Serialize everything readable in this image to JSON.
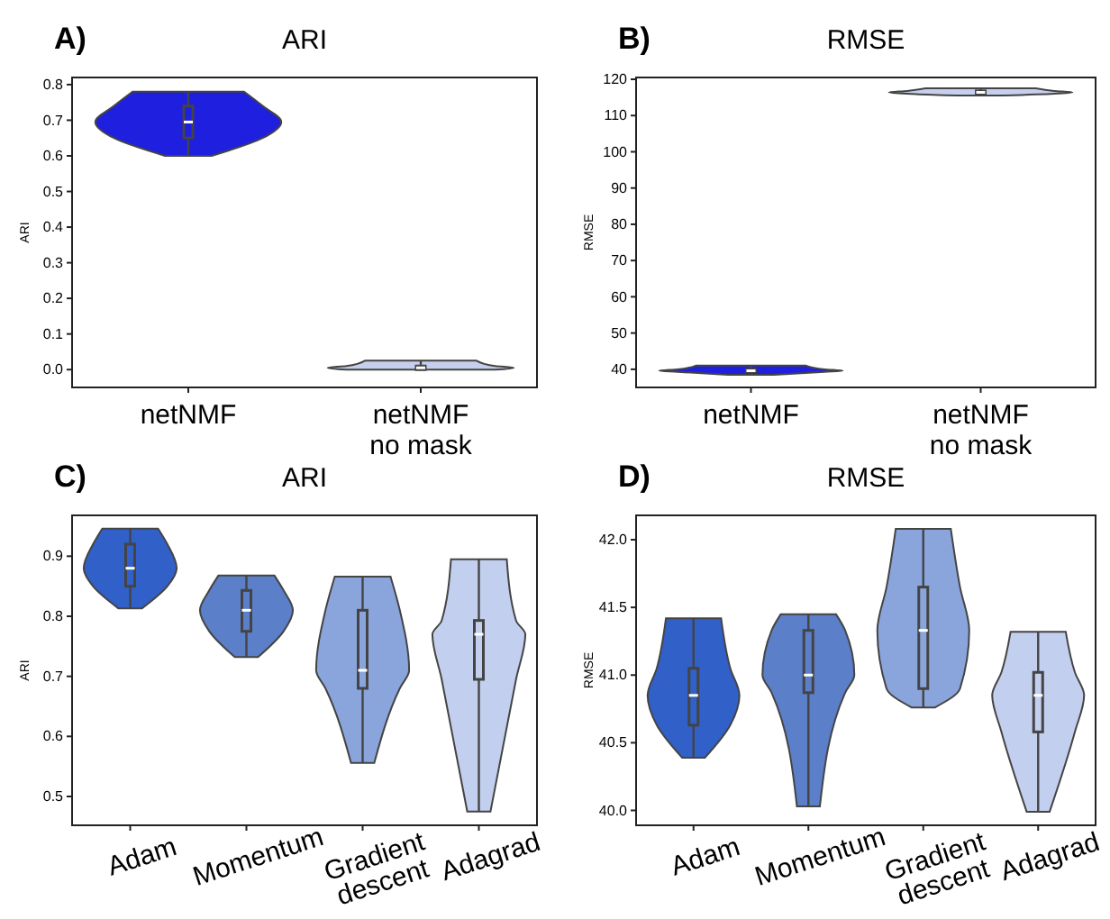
{
  "chart_data": [
    {
      "type": "box",
      "title": "ARI",
      "ylabel": "ARI",
      "annotations": [
        "A)"
      ],
      "categories": [
        "netNMF",
        "netNMF\nno mask"
      ],
      "colors": [
        "#1f1fe0",
        "#c6d0ee"
      ],
      "ylim": [
        -0.05,
        0.82
      ],
      "yticks": [
        {
          "value": 0,
          "label": "0.0"
        },
        0.1,
        0.2,
        0.3,
        0.4,
        0.5,
        0.6,
        0.7,
        0.8
      ],
      "boxes": [
        {
          "low": 0.6,
          "q1": 0.65,
          "median": 0.695,
          "q3": 0.74,
          "high": 0.78
        },
        {
          "low": 0,
          "q1": 0,
          "median": 0.005,
          "q3": 0.01,
          "high": 0.025
        }
      ]
    },
    {
      "type": "box",
      "title": "RMSE",
      "ylabel": "RMSE",
      "annotations": [
        "B)"
      ],
      "categories": [
        "netNMF",
        "netNMF\nno mask"
      ],
      "colors": [
        "#1f1fe0",
        "#c6d0ee"
      ],
      "ylim": [
        35,
        120.5
      ],
      "yticks": [
        40,
        50,
        60,
        70,
        80,
        90,
        100,
        110,
        120
      ],
      "boxes": [
        {
          "low": 38.5,
          "q1": 39.3,
          "median": 39.6,
          "q3": 40,
          "high": 41
        },
        {
          "low": 115.5,
          "q1": 116,
          "median": 116.4,
          "q3": 116.8,
          "high": 117.5
        }
      ]
    },
    {
      "type": "box",
      "title": "ARI",
      "ylabel": "ARI",
      "annotations": [
        "C)"
      ],
      "categories": [
        "Adam",
        "Momentum",
        "Gradient\ndescent",
        "Adagrad"
      ],
      "colors": [
        "#3060c8",
        "#5b7fc8",
        "#8aa5dc",
        "#c3cfee"
      ],
      "ylim": [
        0.452,
        0.968
      ],
      "yticks": [
        0.5,
        0.6,
        0.7,
        0.8,
        0.9
      ],
      "boxes": [
        {
          "low": 0.813,
          "q1": 0.85,
          "median": 0.88,
          "q3": 0.92,
          "high": 0.946
        },
        {
          "low": 0.732,
          "q1": 0.775,
          "median": 0.81,
          "q3": 0.843,
          "high": 0.868
        },
        {
          "low": 0.556,
          "q1": 0.68,
          "median": 0.71,
          "q3": 0.81,
          "high": 0.866
        },
        {
          "low": 0.475,
          "q1": 0.695,
          "median": 0.77,
          "q3": 0.793,
          "high": 0.895
        }
      ]
    },
    {
      "type": "box",
      "title": "RMSE",
      "ylabel": "RMSE",
      "annotations": [
        "D)"
      ],
      "categories": [
        "Adam",
        "Momentum",
        "Gradient\ndescent",
        "Adagrad"
      ],
      "colors": [
        "#3060c8",
        "#5b7fc8",
        "#8aa5dc",
        "#c3cfee"
      ],
      "ylim": [
        39.89,
        42.18
      ],
      "yticks": [
        {
          "value": 40,
          "label": "40.0"
        },
        40.5,
        {
          "value": 41,
          "label": "41.0"
        },
        41.5,
        {
          "value": 42,
          "label": "42.0"
        }
      ],
      "boxes": [
        {
          "low": 40.39,
          "q1": 40.63,
          "median": 40.85,
          "q3": 41.05,
          "high": 41.42
        },
        {
          "low": 40.03,
          "q1": 40.87,
          "median": 41.0,
          "q3": 41.33,
          "high": 41.45
        },
        {
          "low": 40.76,
          "q1": 40.9,
          "median": 41.33,
          "q3": 41.65,
          "high": 42.08
        },
        {
          "low": 39.99,
          "q1": 40.58,
          "median": 40.85,
          "q3": 41.02,
          "high": 41.32
        }
      ]
    }
  ]
}
